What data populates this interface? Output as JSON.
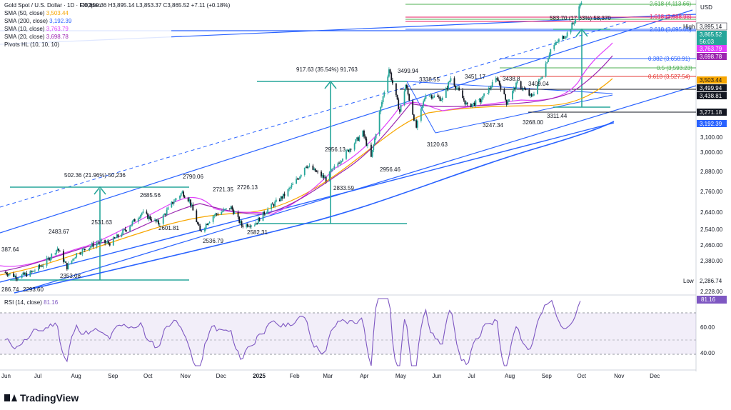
{
  "header": {
    "symbol_line": "Gold Spot / U.S. Dollar · 1D · FXOpen",
    "ohlc_line": "O3,859.36  H3,895.14  L3,853.37  C3,865.52  +7.11 (+0.18%)",
    "currency": "USD"
  },
  "legend": [
    {
      "label": "SMA (50, close)",
      "value": "3,503.44",
      "color": "#f7a600"
    },
    {
      "label": "SMA (200, close)",
      "value": "3,192.39",
      "color": "#2962ff"
    },
    {
      "label": "SMA (10, close)",
      "value": "3,763.79",
      "color": "#e040fb"
    },
    {
      "label": "SMA (20, close)",
      "value": "3,698.78",
      "color": "#9c27b0"
    },
    {
      "label": "Pivots HL (10, 10, 10)",
      "value": "",
      "color": "#131722"
    }
  ],
  "price_tags": [
    {
      "value": "3,895.14",
      "bg": "#ffffff",
      "fg": "#131722",
      "label": "High"
    },
    {
      "value": "3,865.52",
      "bg": "#26a69a",
      "fg": "#ffffff",
      "sub": "56:03"
    },
    {
      "value": "3,763.79",
      "bg": "#e040fb",
      "fg": "#ffffff"
    },
    {
      "value": "3,698.78",
      "bg": "#9c27b0",
      "fg": "#ffffff"
    },
    {
      "value": "3,503.44",
      "bg": "#f7a600",
      "fg": "#131722"
    },
    {
      "value": "3,499.94",
      "bg": "#131722",
      "fg": "#ffffff"
    },
    {
      "value": "3,438.81",
      "bg": "#131722",
      "fg": "#ffffff"
    },
    {
      "value": "3,271.18",
      "bg": "#131722",
      "fg": "#ffffff"
    },
    {
      "value": "3,192.39",
      "bg": "#2962ff",
      "fg": "#ffffff"
    },
    {
      "value": "2,286.74",
      "bg": "#ffffff",
      "fg": "#131722",
      "label": "Low"
    }
  ],
  "fib_levels": [
    {
      "label": "2.618 (4,113.66)",
      "value": 4113.66,
      "color": "#4caf50"
    },
    {
      "label": "1.618 (3,988.98)",
      "value": 3988.98,
      "color": "#e91e63"
    },
    {
      "label": "2.618 (3,895.06)",
      "value": 3895.06,
      "color": "#2962ff"
    },
    {
      "label": "0.382 (3,658.91)",
      "value": 3658.91,
      "color": "#2962ff"
    },
    {
      "label": "0.5 (3,593.23)",
      "value": 3593.23,
      "color": "#4caf50"
    },
    {
      "label": "0.618 (3,527.54)",
      "value": 3527.54,
      "color": "#e53935"
    }
  ],
  "measure_labels": [
    {
      "text": "502.36 (21.96%) 50,236"
    },
    {
      "text": "917.63 (35.54%) 91,763"
    },
    {
      "text": "583.70 (17.63%) 58,370"
    }
  ],
  "pivot_labels": [
    "387.64",
    "286.74",
    "2293.60",
    "2483.67",
    "2353.08",
    "2531.63",
    "2685.56",
    "2601.81",
    "2790.06",
    "2721.35",
    "2726.13",
    "2536.79",
    "2582.31",
    "2833.59",
    "2956.13",
    "2956.46",
    "3499.94",
    "3338.55",
    "3120.63",
    "3451.17",
    "3247.34",
    "3438.8",
    "3409.04",
    "3268.00",
    "3311.44"
  ],
  "rsi": {
    "label": "RSI (14, close)",
    "value": "81.16",
    "ticks": [
      "60.00",
      "40.00"
    ]
  },
  "chart_data": {
    "type": "line",
    "title": "Gold Spot / U.S. Dollar · 1D · FXOpen",
    "x_ticks": [
      "Jun",
      "Jul",
      "Aug",
      "Sep",
      "Oct",
      "Nov",
      "Dec",
      "2025",
      "Feb",
      "Mar",
      "Apr",
      "May",
      "Jun",
      "Jul",
      "Aug",
      "Sep",
      "Oct",
      "Nov",
      "Dec"
    ],
    "y_ticks": [
      "3,100.00",
      "3,000.00",
      "2,880.00",
      "2,760.00",
      "2,640.00",
      "2,540.00",
      "2,460.00",
      "2,380.00",
      "2,228.00"
    ],
    "series": [
      {
        "name": "SMA (50, close)",
        "last": 3503.44
      },
      {
        "name": "SMA (200, close)",
        "last": 3192.39
      },
      {
        "name": "SMA (10, close)",
        "last": 3763.79
      },
      {
        "name": "SMA (20, close)",
        "last": 3698.78
      }
    ],
    "close_points": [
      [
        "2024-06-03",
        2335
      ],
      [
        "2024-06-13",
        2310
      ],
      [
        "2024-06-24",
        2330
      ],
      [
        "2024-07-05",
        2380
      ],
      [
        "2024-07-17",
        2470
      ],
      [
        "2024-07-25",
        2365
      ],
      [
        "2024-08-02",
        2440
      ],
      [
        "2024-08-20",
        2505
      ],
      [
        "2024-08-30",
        2500
      ],
      [
        "2024-09-13",
        2580
      ],
      [
        "2024-09-26",
        2670
      ],
      [
        "2024-10-10",
        2610
      ],
      [
        "2024-10-22",
        2730
      ],
      [
        "2024-10-30",
        2785
      ],
      [
        "2024-11-05",
        2740
      ],
      [
        "2024-11-14",
        2565
      ],
      [
        "2024-11-25",
        2655
      ],
      [
        "2024-12-10",
        2700
      ],
      [
        "2024-12-19",
        2600
      ],
      [
        "2024-12-30",
        2610
      ],
      [
        "2025-01-10",
        2690
      ],
      [
        "2025-01-24",
        2770
      ],
      [
        "2025-02-05",
        2870
      ],
      [
        "2025-02-11",
        2940
      ],
      [
        "2025-02-28",
        2860
      ],
      [
        "2025-03-14",
        2985
      ],
      [
        "2025-03-31",
        3120
      ],
      [
        "2025-04-07",
        2980
      ],
      [
        "2025-04-14",
        3230
      ],
      [
        "2025-04-22",
        3480
      ],
      [
        "2025-05-01",
        3240
      ],
      [
        "2025-05-06",
        3390
      ],
      [
        "2025-05-15",
        3150
      ],
      [
        "2025-05-23",
        3340
      ],
      [
        "2025-06-06",
        3310
      ],
      [
        "2025-06-13",
        3430
      ],
      [
        "2025-06-27",
        3270
      ],
      [
        "2025-07-08",
        3300
      ],
      [
        "2025-07-22",
        3430
      ],
      [
        "2025-07-30",
        3290
      ],
      [
        "2025-08-08",
        3400
      ],
      [
        "2025-08-20",
        3320
      ],
      [
        "2025-08-29",
        3450
      ],
      [
        "2025-09-05",
        3590
      ],
      [
        "2025-09-12",
        3640
      ],
      [
        "2025-09-19",
        3680
      ],
      [
        "2025-09-26",
        3760
      ],
      [
        "2025-10-01",
        3865
      ]
    ]
  }
}
